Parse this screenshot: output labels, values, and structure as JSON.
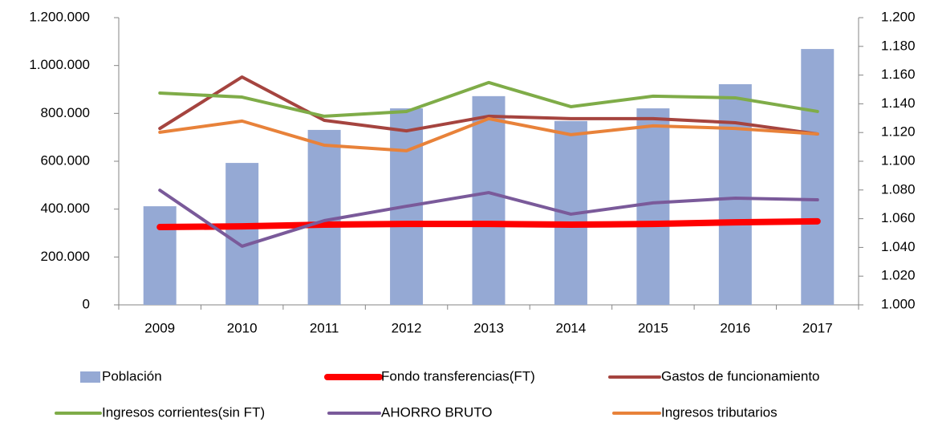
{
  "chart_data": {
    "type": "bar",
    "categories": [
      "2009",
      "2010",
      "2011",
      "2012",
      "2013",
      "2014",
      "2015",
      "2016",
      "2017"
    ],
    "series": [
      {
        "name": "Población",
        "type": "bar",
        "color": "#95a9d4",
        "values": [
          412000,
          593000,
          731000,
          821000,
          872000,
          768000,
          821000,
          922000,
          1069000
        ]
      },
      {
        "name": "Fondo transferencias(FT)",
        "type": "line",
        "color": "#ff0000",
        "values": [
          325000,
          328000,
          335000,
          338000,
          338000,
          335000,
          338000,
          345000,
          349000
        ]
      },
      {
        "name": "Gastos de funcionamiento",
        "type": "line",
        "color": "#a5443f",
        "values": [
          737000,
          952000,
          771000,
          727000,
          788000,
          778000,
          778000,
          761000,
          714000
        ]
      },
      {
        "name": "Ingresos corrientes(sin FT)",
        "type": "line",
        "color": "#7fac48",
        "values": [
          885000,
          868000,
          788000,
          808000,
          929000,
          828000,
          872000,
          865000,
          808000
        ]
      },
      {
        "name": "AHORRO BRUTO",
        "type": "line",
        "color": "#7a5a9a",
        "values": [
          479000,
          245000,
          352000,
          412000,
          469000,
          379000,
          426000,
          446000,
          439000
        ]
      },
      {
        "name": "Ingresos tributarios",
        "type": "line",
        "color": "#e8823a",
        "values": [
          721000,
          768000,
          667000,
          644000,
          778000,
          711000,
          748000,
          737000,
          714000
        ]
      }
    ],
    "ylim": [
      0,
      1200000
    ],
    "yticks": [
      0,
      {
        "value": 200000,
        "label": "200.000"
      },
      {
        "value": 400000,
        "label": "400.000"
      },
      {
        "value": 600000,
        "label": "600.000"
      },
      {
        "value": 800000,
        "label": "800.000"
      },
      {
        "value": 1000000,
        "label": "1.000.000"
      },
      {
        "value": 1200000,
        "label": "1.200.000"
      }
    ],
    "y2lim": [
      1000,
      1200
    ],
    "y2ticks": [
      {
        "value": 1000,
        "label": "1.000"
      },
      {
        "value": 1020,
        "label": "1.020"
      },
      {
        "value": 1040,
        "label": "1.040"
      },
      {
        "value": 1060,
        "label": "1.060"
      },
      {
        "value": 1080,
        "label": "1.080"
      },
      {
        "value": 1100,
        "label": "1.100"
      },
      {
        "value": 1120,
        "label": "1.120"
      },
      {
        "value": 1140,
        "label": "1.140"
      },
      {
        "value": 1160,
        "label": "1.160"
      },
      {
        "value": 1180,
        "label": "1.180"
      },
      {
        "value": 1200,
        "label": "1.200"
      }
    ],
    "grid": false
  }
}
